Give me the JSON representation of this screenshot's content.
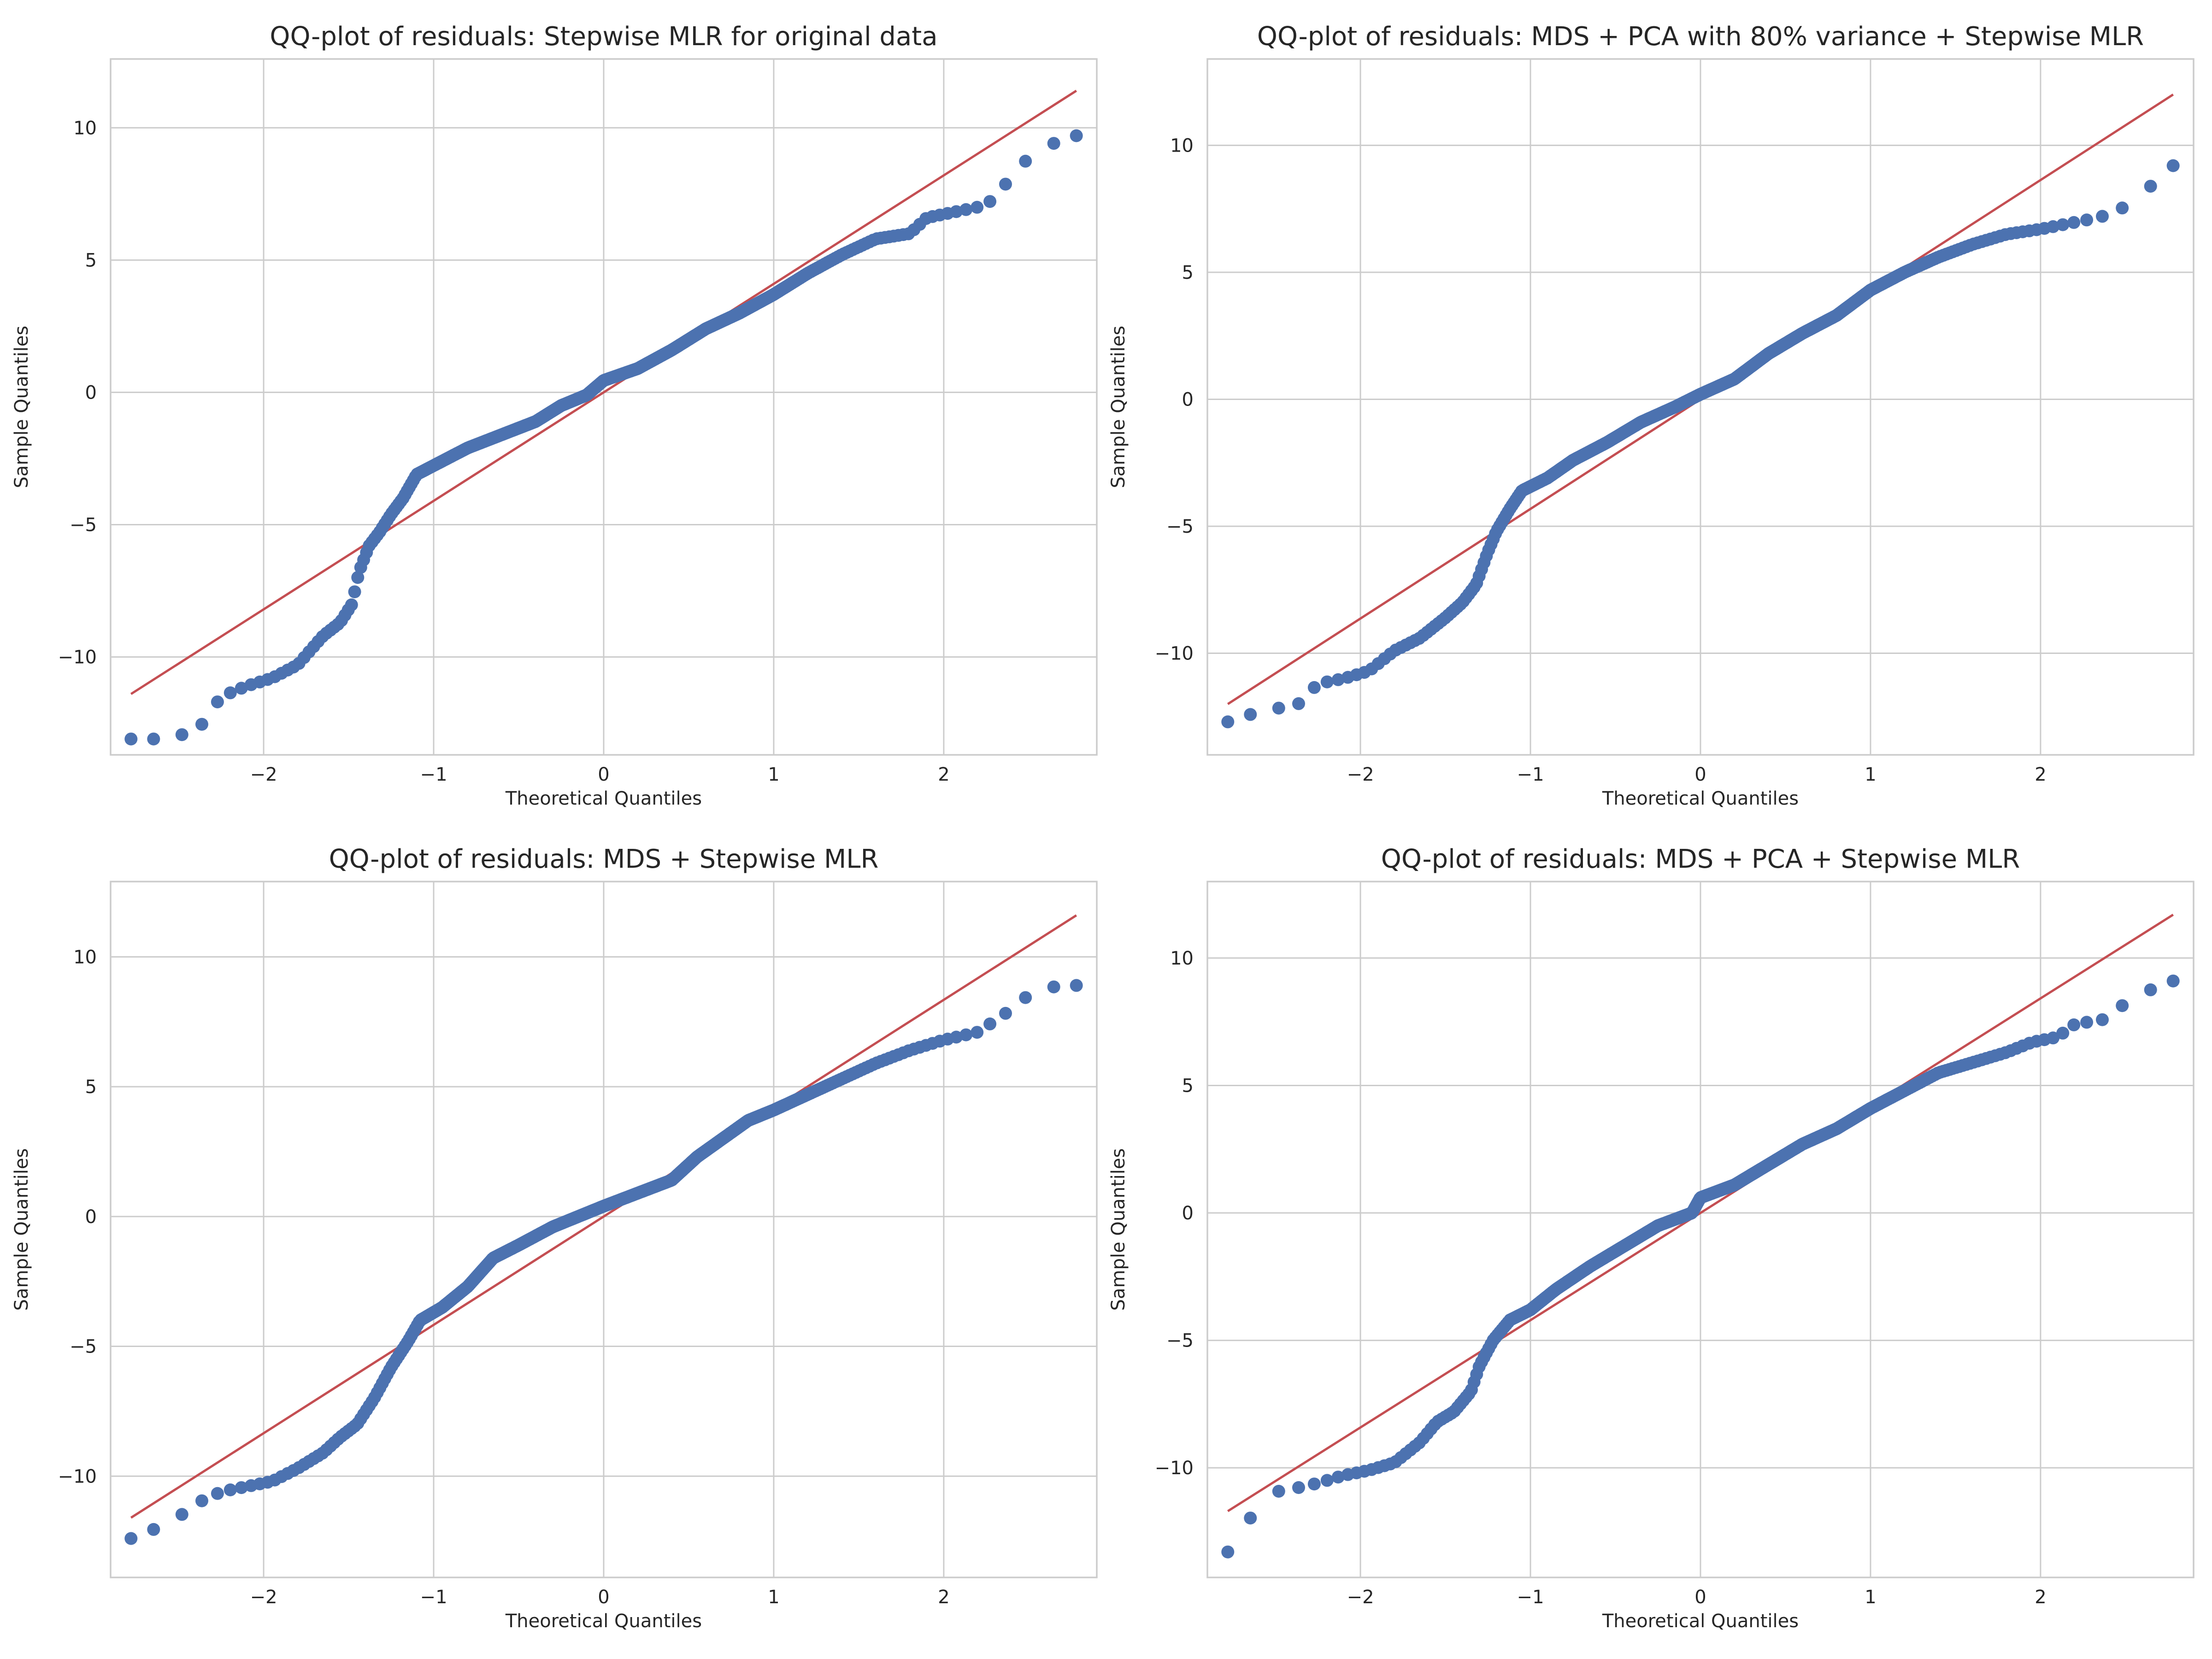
{
  "colors": {
    "points": "#4c72b0",
    "reference_line": "#c44e52",
    "grid": "#cccccc",
    "text": "#262626"
  },
  "chart_data": [
    {
      "type": "scatter",
      "title": "QQ-plot of residuals: Stepwise MLR for original data",
      "xlabel": "Theoretical Quantiles",
      "ylabel": "Sample Quantiles",
      "xlim": [
        -2.9,
        2.9
      ],
      "ylim": [
        -13.7,
        12.6
      ],
      "xticks": [
        -2,
        -1,
        0,
        1,
        2
      ],
      "xtick_labels": [
        "−2",
        "−1",
        "0",
        "1",
        "2"
      ],
      "yticks": [
        -10,
        -5,
        0,
        5,
        10
      ],
      "ytick_labels": [
        "−10",
        "−5",
        "0",
        "5",
        "10"
      ],
      "line": [
        [
          -2.78,
          -11.4
        ],
        [
          2.78,
          11.4
        ]
      ],
      "quantile_curve": [
        [
          -2.78,
          -13.1
        ],
        [
          -2.55,
          -13.1
        ],
        [
          -2.38,
          -12.7
        ],
        [
          -2.25,
          -11.5
        ],
        [
          -2.1,
          -11.1
        ],
        [
          -1.95,
          -10.8
        ],
        [
          -1.8,
          -10.3
        ],
        [
          -1.65,
          -9.2
        ],
        [
          -1.55,
          -8.7
        ],
        [
          -1.48,
          -8.0
        ],
        [
          -1.44,
          -6.8
        ],
        [
          -1.38,
          -5.8
        ],
        [
          -1.32,
          -5.3
        ],
        [
          -1.25,
          -4.6
        ],
        [
          -1.18,
          -4.0
        ],
        [
          -1.1,
          -3.1
        ],
        [
          -0.95,
          -2.6
        ],
        [
          -0.8,
          -2.1
        ],
        [
          -0.6,
          -1.6
        ],
        [
          -0.4,
          -1.1
        ],
        [
          -0.25,
          -0.5
        ],
        [
          -0.1,
          -0.1
        ],
        [
          0.0,
          0.45
        ],
        [
          0.2,
          0.9
        ],
        [
          0.4,
          1.6
        ],
        [
          0.6,
          2.4
        ],
        [
          0.8,
          3.0
        ],
        [
          1.0,
          3.7
        ],
        [
          1.2,
          4.5
        ],
        [
          1.4,
          5.2
        ],
        [
          1.6,
          5.8
        ],
        [
          1.8,
          6.0
        ],
        [
          1.9,
          6.6
        ],
        [
          2.05,
          6.8
        ],
        [
          2.2,
          7.0
        ],
        [
          2.3,
          7.3
        ],
        [
          2.4,
          8.2
        ],
        [
          2.55,
          9.2
        ],
        [
          2.78,
          9.7
        ]
      ]
    },
    {
      "type": "scatter",
      "title": "QQ-plot of residuals: MDS + PCA with 80% variance + Stepwise MLR",
      "xlabel": "Theoretical Quantiles",
      "ylabel": "Sample Quantiles",
      "xlim": [
        -2.9,
        2.9
      ],
      "ylim": [
        -14.0,
        13.4
      ],
      "xticks": [
        -2,
        -1,
        0,
        1,
        2
      ],
      "xtick_labels": [
        "−2",
        "−1",
        "0",
        "1",
        "2"
      ],
      "yticks": [
        -10,
        -5,
        0,
        5,
        10
      ],
      "ytick_labels": [
        "−10",
        "−5",
        "0",
        "5",
        "10"
      ],
      "line": [
        [
          -2.78,
          -12.0
        ],
        [
          2.78,
          12.0
        ]
      ],
      "quantile_curve": [
        [
          -2.78,
          -12.7
        ],
        [
          -2.55,
          -12.2
        ],
        [
          -2.38,
          -12.1
        ],
        [
          -2.25,
          -11.2
        ],
        [
          -2.1,
          -11.0
        ],
        [
          -1.95,
          -10.7
        ],
        [
          -1.8,
          -9.9
        ],
        [
          -1.65,
          -9.4
        ],
        [
          -1.5,
          -8.6
        ],
        [
          -1.4,
          -8.0
        ],
        [
          -1.32,
          -7.3
        ],
        [
          -1.25,
          -6.0
        ],
        [
          -1.2,
          -5.2
        ],
        [
          -1.12,
          -4.3
        ],
        [
          -1.05,
          -3.6
        ],
        [
          -0.9,
          -3.1
        ],
        [
          -0.75,
          -2.4
        ],
        [
          -0.55,
          -1.7
        ],
        [
          -0.35,
          -0.9
        ],
        [
          -0.15,
          -0.3
        ],
        [
          0.0,
          0.2
        ],
        [
          0.2,
          0.8
        ],
        [
          0.4,
          1.8
        ],
        [
          0.6,
          2.6
        ],
        [
          0.8,
          3.3
        ],
        [
          1.0,
          4.3
        ],
        [
          1.2,
          5.0
        ],
        [
          1.4,
          5.6
        ],
        [
          1.6,
          6.1
        ],
        [
          1.8,
          6.5
        ],
        [
          2.0,
          6.7
        ],
        [
          2.15,
          6.9
        ],
        [
          2.3,
          7.1
        ],
        [
          2.42,
          7.3
        ],
        [
          2.55,
          7.8
        ],
        [
          2.78,
          9.2
        ]
      ]
    },
    {
      "type": "scatter",
      "title": "QQ-plot of residuals: MDS + Stepwise MLR",
      "xlabel": "Theoretical Quantiles",
      "ylabel": "Sample Quantiles",
      "xlim": [
        -2.9,
        2.9
      ],
      "ylim": [
        -13.9,
        12.9
      ],
      "xticks": [
        -2,
        -1,
        0,
        1,
        2
      ],
      "xtick_labels": [
        "−2",
        "−1",
        "0",
        "1",
        "2"
      ],
      "yticks": [
        -10,
        -5,
        0,
        5,
        10
      ],
      "ytick_labels": [
        "−10",
        "−5",
        "0",
        "5",
        "10"
      ],
      "line": [
        [
          -2.78,
          -11.6
        ],
        [
          2.78,
          11.6
        ]
      ],
      "quantile_curve": [
        [
          -2.78,
          -12.4
        ],
        [
          -2.55,
          -11.8
        ],
        [
          -2.38,
          -11.0
        ],
        [
          -2.25,
          -10.6
        ],
        [
          -2.1,
          -10.4
        ],
        [
          -1.95,
          -10.2
        ],
        [
          -1.8,
          -9.7
        ],
        [
          -1.65,
          -9.1
        ],
        [
          -1.55,
          -8.5
        ],
        [
          -1.45,
          -8.0
        ],
        [
          -1.35,
          -7.0
        ],
        [
          -1.25,
          -5.8
        ],
        [
          -1.15,
          -4.8
        ],
        [
          -1.08,
          -4.0
        ],
        [
          -0.95,
          -3.5
        ],
        [
          -0.8,
          -2.7
        ],
        [
          -0.65,
          -1.6
        ],
        [
          -0.5,
          -1.1
        ],
        [
          -0.3,
          -0.4
        ],
        [
          -0.15,
          0.0
        ],
        [
          0.0,
          0.4
        ],
        [
          0.2,
          0.9
        ],
        [
          0.4,
          1.4
        ],
        [
          0.55,
          2.3
        ],
        [
          0.7,
          3.0
        ],
        [
          0.85,
          3.7
        ],
        [
          1.0,
          4.1
        ],
        [
          1.2,
          4.7
        ],
        [
          1.4,
          5.3
        ],
        [
          1.6,
          5.9
        ],
        [
          1.8,
          6.4
        ],
        [
          2.0,
          6.8
        ],
        [
          2.2,
          7.1
        ],
        [
          2.38,
          7.9
        ],
        [
          2.55,
          8.8
        ],
        [
          2.78,
          8.9
        ]
      ]
    },
    {
      "type": "scatter",
      "title": "QQ-plot of residuals: MDS + PCA + Stepwise MLR",
      "xlabel": "Theoretical Quantiles",
      "ylabel": "Sample Quantiles",
      "xlim": [
        -2.9,
        2.9
      ],
      "ylim": [
        -14.3,
        13.0
      ],
      "xticks": [
        -2,
        -1,
        0,
        1,
        2
      ],
      "xtick_labels": [
        "−2",
        "−1",
        "0",
        "1",
        "2"
      ],
      "yticks": [
        -10,
        -5,
        0,
        5,
        10
      ],
      "ytick_labels": [
        "−10",
        "−5",
        "0",
        "5",
        "10"
      ],
      "line": [
        [
          -2.78,
          -11.7
        ],
        [
          2.78,
          11.7
        ]
      ],
      "quantile_curve": [
        [
          -2.78,
          -13.3
        ],
        [
          -2.55,
          -11.0
        ],
        [
          -2.38,
          -10.8
        ],
        [
          -2.25,
          -10.6
        ],
        [
          -2.1,
          -10.3
        ],
        [
          -1.95,
          -10.1
        ],
        [
          -1.8,
          -9.8
        ],
        [
          -1.65,
          -9.0
        ],
        [
          -1.55,
          -8.2
        ],
        [
          -1.45,
          -7.8
        ],
        [
          -1.35,
          -7.0
        ],
        [
          -1.3,
          -6.0
        ],
        [
          -1.22,
          -5.0
        ],
        [
          -1.12,
          -4.2
        ],
        [
          -1.0,
          -3.8
        ],
        [
          -0.85,
          -3.0
        ],
        [
          -0.65,
          -2.1
        ],
        [
          -0.45,
          -1.3
        ],
        [
          -0.25,
          -0.5
        ],
        [
          -0.05,
          0.0
        ],
        [
          0.0,
          0.6
        ],
        [
          0.2,
          1.1
        ],
        [
          0.4,
          1.9
        ],
        [
          0.6,
          2.7
        ],
        [
          0.8,
          3.3
        ],
        [
          1.0,
          4.1
        ],
        [
          1.2,
          4.8
        ],
        [
          1.4,
          5.5
        ],
        [
          1.6,
          5.9
        ],
        [
          1.8,
          6.3
        ],
        [
          1.95,
          6.7
        ],
        [
          2.1,
          6.9
        ],
        [
          2.2,
          7.4
        ],
        [
          2.38,
          7.6
        ],
        [
          2.55,
          8.5
        ],
        [
          2.78,
          9.1
        ]
      ]
    }
  ]
}
